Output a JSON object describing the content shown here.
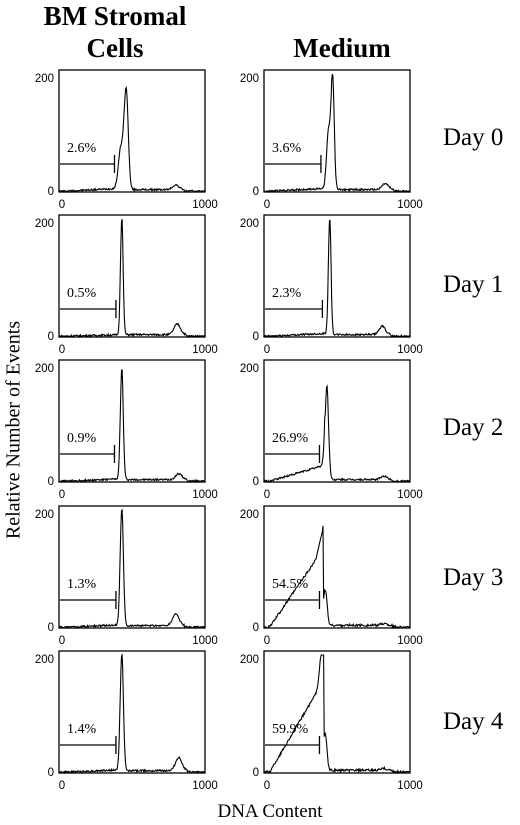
{
  "headers": {
    "left": "BM Stromal Cells",
    "right": "Medium"
  },
  "xlabel": "DNA Content",
  "ylabel": "Relative Number of Events",
  "days": [
    "Day 0",
    "Day 1",
    "Day 2",
    "Day 3",
    "Day 4"
  ],
  "chart_data": {
    "type": "line",
    "xlim": [
      0,
      1000
    ],
    "ylim": [
      0,
      200
    ],
    "xticks": [
      "0",
      "1000"
    ],
    "yticks": [
      "0",
      "200"
    ],
    "rows": [
      {
        "day": "Day 0",
        "stromal": {
          "percent": "2.6%",
          "gate": [
            0,
            380
          ],
          "peak_x": 460,
          "peak_y": 170,
          "width": 14,
          "shoulder": 0.4,
          "g2_x": 800,
          "g2_y": 8,
          "sub": 0.1,
          "noise": 3
        },
        "medium": {
          "percent": "3.6%",
          "gate": [
            0,
            390
          ],
          "peak_x": 470,
          "peak_y": 190,
          "width": 11,
          "shoulder": 0.5,
          "g2_x": 830,
          "g2_y": 10,
          "sub": 0.1,
          "noise": 3
        }
      },
      {
        "day": "Day 1",
        "stromal": {
          "percent": "0.5%",
          "gate": [
            0,
            390
          ],
          "peak_x": 430,
          "peak_y": 200,
          "width": 9,
          "shoulder": 0,
          "g2_x": 810,
          "g2_y": 18,
          "sub": 0.05,
          "noise": 3
        },
        "medium": {
          "percent": "2.3%",
          "gate": [
            0,
            400
          ],
          "peak_x": 450,
          "peak_y": 200,
          "width": 9,
          "shoulder": 0,
          "g2_x": 810,
          "g2_y": 14,
          "sub": 0.1,
          "noise": 3
        }
      },
      {
        "day": "Day 2",
        "stromal": {
          "percent": "0.9%",
          "gate": [
            0,
            380
          ],
          "peak_x": 430,
          "peak_y": 190,
          "width": 10,
          "shoulder": 0,
          "g2_x": 820,
          "g2_y": 10,
          "sub": 0.08,
          "noise": 3
        },
        "medium": {
          "percent": "26.9%",
          "gate": [
            0,
            380
          ],
          "peak_x": 430,
          "peak_y": 160,
          "width": 12,
          "shoulder": 0,
          "g2_x": 820,
          "g2_y": 6,
          "sub": 0.6,
          "noise": 3
        }
      },
      {
        "day": "Day 3",
        "stromal": {
          "percent": "1.3%",
          "gate": [
            0,
            390
          ],
          "peak_x": 430,
          "peak_y": 200,
          "width": 11,
          "shoulder": 0,
          "g2_x": 800,
          "g2_y": 20,
          "sub": 0.08,
          "noise": 3
        },
        "medium": {
          "percent": "54.5%",
          "gate": [
            0,
            380
          ],
          "peak_x": 420,
          "peak_y": 60,
          "width": 12,
          "shoulder": 0.4,
          "g2_x": 820,
          "g2_y": 3,
          "sub": 3.0,
          "noise": 4
        }
      },
      {
        "day": "Day 4",
        "stromal": {
          "percent": "1.4%",
          "gate": [
            0,
            390
          ],
          "peak_x": 430,
          "peak_y": 200,
          "width": 11,
          "shoulder": 0,
          "g2_x": 820,
          "g2_y": 22,
          "sub": 0.08,
          "noise": 3
        },
        "medium": {
          "percent": "59.9%",
          "gate": [
            0,
            380
          ],
          "peak_x": 420,
          "peak_y": 60,
          "width": 11,
          "shoulder": 0.8,
          "g2_x": 820,
          "g2_y": 3,
          "sub": 3.5,
          "noise": 4
        }
      }
    ]
  }
}
